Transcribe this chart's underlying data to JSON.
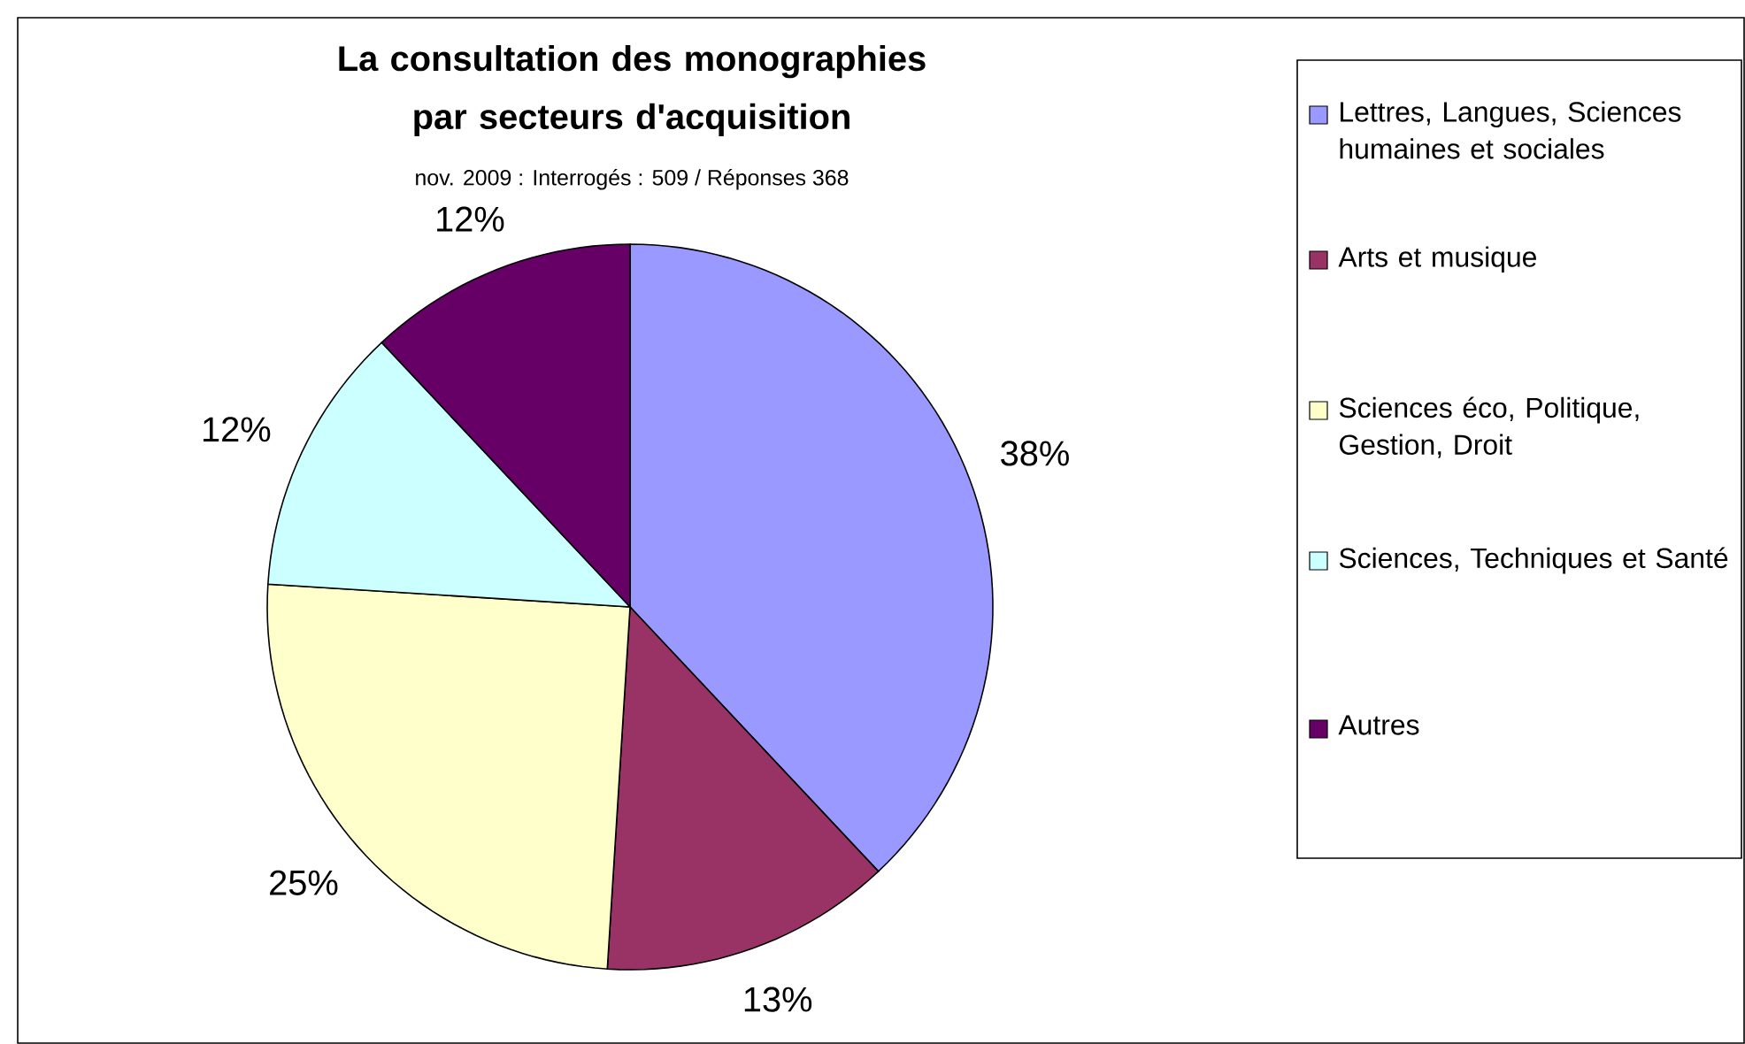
{
  "chart_data": {
    "type": "pie",
    "title": "La consultation des monographies par secteurs d'acquisition",
    "subtitle": "nov. 2009 : Interrogés : 509 / Réponses 368",
    "categories": [
      "Lettres, Langues, Sciences humaines et sociales",
      "Arts et musique",
      "Sciences éco, Politique, Gestion, Droit",
      "Sciences, Techniques et Santé",
      "Autres"
    ],
    "values": [
      38,
      13,
      25,
      12,
      12
    ],
    "colors": [
      "#9999ff",
      "#993366",
      "#ffffcc",
      "#ccffff",
      "#660066"
    ],
    "value_labels": [
      "38%",
      "13%",
      "25%",
      "12%",
      "12%"
    ],
    "legend": "right"
  }
}
